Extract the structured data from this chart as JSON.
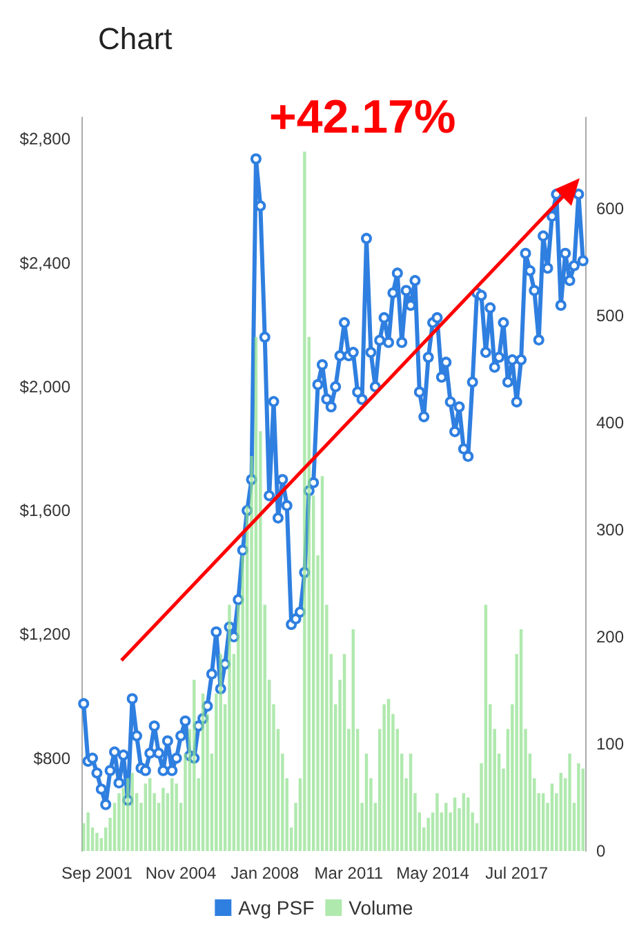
{
  "chart_data": {
    "type": "line",
    "title": "Chart",
    "annotations": [
      "+42.17%"
    ],
    "categories": [
      null,
      null,
      null,
      "Sep 2001",
      null,
      null,
      null,
      null,
      null,
      null,
      null,
      null,
      null,
      null,
      null,
      null,
      null,
      null,
      null,
      null,
      null,
      null,
      "Nov 2004",
      null,
      null,
      null,
      null,
      null,
      null,
      null,
      null,
      null,
      null,
      null,
      null,
      null,
      null,
      null,
      null,
      null,
      null,
      "Jan 2008",
      null,
      null,
      null,
      null,
      null,
      null,
      null,
      null,
      null,
      null,
      null,
      null,
      null,
      null,
      null,
      null,
      null,
      null,
      "Mar 2011",
      null,
      null,
      null,
      null,
      null,
      null,
      null,
      null,
      null,
      null,
      null,
      null,
      null,
      null,
      null,
      null,
      null,
      null,
      "May 2014",
      null,
      null,
      null,
      null,
      null,
      null,
      null,
      null,
      null,
      null,
      null,
      null,
      null,
      null,
      null,
      null,
      null,
      null,
      "Jul 2017",
      null,
      null,
      null,
      null,
      null,
      null,
      null,
      null,
      null,
      null,
      null,
      null,
      null,
      null,
      null
    ],
    "series": [
      {
        "name": "Avg PSF",
        "color": "#2f7fe0",
        "values": [
          976,
          790,
          800,
          752,
          700,
          650,
          760,
          820,
          720,
          810,
          664,
          992,
          872,
          768,
          760,
          816,
          904,
          816,
          760,
          856,
          760,
          800,
          872,
          920,
          808,
          800,
          904,
          928,
          968,
          1072,
          1208,
          1024,
          1104,
          1224,
          1192,
          1312,
          1472,
          1600,
          1700,
          2736,
          2584,
          2160,
          1648,
          1952,
          1576,
          1700,
          1616,
          1232,
          1250,
          1272,
          1400,
          1664,
          1690,
          2007,
          2071,
          1960,
          1935,
          2000,
          2100,
          2207,
          2100,
          2111,
          1983,
          1959,
          2479,
          2111,
          2000,
          2150,
          2223,
          2143,
          2303,
          2367,
          2143,
          2311,
          2263,
          2343,
          1983,
          1903,
          2095,
          2207,
          2223,
          2031,
          2079,
          1951,
          1855,
          1935,
          1799,
          1775,
          2015,
          2303,
          2295,
          2111,
          2255,
          2063,
          2095,
          2207,
          2015,
          2087,
          1951,
          2087,
          2431,
          2375,
          2311,
          2151,
          2487,
          2383,
          2551,
          2622,
          2263,
          2431,
          2343,
          2391,
          2622,
          2407
        ]
      },
      {
        "name": "Volume",
        "type": "bar",
        "axis": "y2",
        "color": "#8fe08c",
        "values": [
          26,
          36,
          22,
          17,
          12,
          22,
          31,
          45,
          54,
          59,
          68,
          73,
          54,
          45,
          63,
          68,
          54,
          45,
          59,
          54,
          68,
          63,
          45,
          91,
          114,
          160,
          68,
          147,
          128,
          91,
          147,
          184,
          137,
          230,
          184,
          230,
          276,
          322,
          369,
          480,
          392,
          230,
          160,
          137,
          114,
          91,
          68,
          22,
          45,
          68,
          653,
          480,
          332,
          276,
          350,
          230,
          184,
          137,
          160,
          184,
          114,
          207,
          114,
          45,
          91,
          68,
          45,
          114,
          137,
          142,
          128,
          114,
          91,
          68,
          91,
          54,
          36,
          22,
          31,
          36,
          54,
          36,
          45,
          36,
          50,
          40,
          54,
          50,
          36,
          26,
          82,
          230,
          137,
          114,
          91,
          77,
          114,
          137,
          184,
          207,
          114,
          91,
          68,
          54,
          54,
          45,
          63,
          54,
          73,
          68,
          91,
          45,
          82,
          77
        ]
      }
    ],
    "ylim": [
      500,
      2870
    ],
    "yticks": [
      {
        "value": 800,
        "label": "$800"
      },
      {
        "value": 1200,
        "label": "$1,200"
      },
      {
        "value": 1600,
        "label": "$1,600"
      },
      {
        "value": 2000,
        "label": "$2,000"
      },
      {
        "value": 2400,
        "label": "$2,400"
      },
      {
        "value": 2800,
        "label": "$2,800"
      }
    ],
    "y2lim": [
      0,
      685
    ],
    "y2ticks": [
      0,
      100,
      200,
      300,
      400,
      500,
      600
    ],
    "legend": "bottom",
    "marker": "circle"
  }
}
